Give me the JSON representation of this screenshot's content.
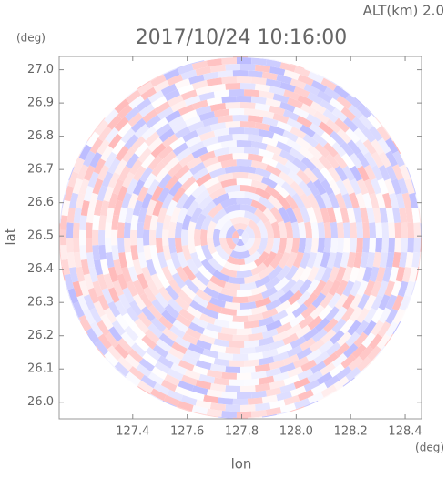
{
  "chart_data": {
    "type": "radar",
    "title": "2017/10/24 10:16:00",
    "annotation": "ALT(km) 2.0",
    "xlabel": "lon",
    "ylabel": "lat",
    "xunit": "(deg)",
    "yunit": "(deg)",
    "xlim": [
      127.13,
      128.46
    ],
    "ylim": [
      25.95,
      27.04
    ],
    "xticks": [
      127.4,
      127.6,
      127.8,
      {
        "value": 128,
        "label": "128.0"
      },
      128.2,
      128.4
    ],
    "yticks": [
      {
        "value": 26,
        "label": "26.0"
      },
      26.1,
      26.2,
      26.3,
      26.4,
      26.5,
      26.6,
      26.7,
      26.8,
      26.9,
      {
        "value": 27,
        "label": "27.0"
      }
    ],
    "colors": [
      "#ffb4b4",
      "#b9b9ff"
    ]
  }
}
